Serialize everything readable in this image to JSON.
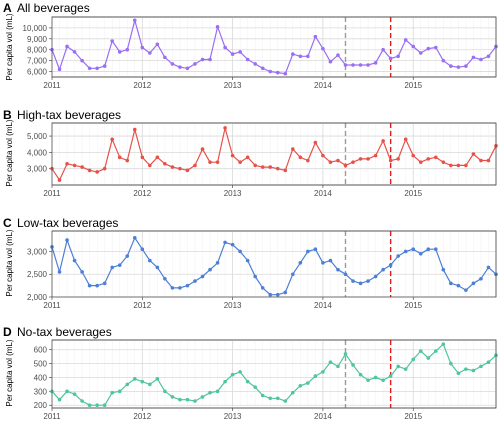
{
  "x_axis": {
    "tick_years": [
      2011,
      2012,
      2013,
      2014,
      2015
    ],
    "tick_labels": [
      "2011",
      "2012",
      "2013",
      "2014",
      "2015"
    ],
    "start": "2011-01",
    "end": "2015-12"
  },
  "markers": [
    {
      "date": "2014-04",
      "color": "#999999",
      "style": "dashed"
    },
    {
      "date": "2014-10",
      "color": "#e41a1c",
      "style": "dashed"
    }
  ],
  "chart_data": [
    {
      "type": "line",
      "letter": "A",
      "title": "All beverages",
      "ylabel": "Per capita vol (mL)",
      "color": "#9b6ef3",
      "ylim": [
        5500,
        11000
      ],
      "yticks": [
        6000,
        7000,
        8000,
        9000,
        10000
      ],
      "ytick_labels": [
        "6,000",
        "7,000",
        "8,000",
        "9,000",
        "10,000"
      ],
      "x": [
        "2011-01",
        "2011-02",
        "2011-03",
        "2011-04",
        "2011-05",
        "2011-06",
        "2011-07",
        "2011-08",
        "2011-09",
        "2011-10",
        "2011-11",
        "2011-12",
        "2012-01",
        "2012-02",
        "2012-03",
        "2012-04",
        "2012-05",
        "2012-06",
        "2012-07",
        "2012-08",
        "2012-09",
        "2012-10",
        "2012-11",
        "2012-12",
        "2013-01",
        "2013-02",
        "2013-03",
        "2013-04",
        "2013-05",
        "2013-06",
        "2013-07",
        "2013-08",
        "2013-09",
        "2013-10",
        "2013-11",
        "2013-12",
        "2014-01",
        "2014-02",
        "2014-03",
        "2014-04",
        "2014-05",
        "2014-06",
        "2014-07",
        "2014-08",
        "2014-09",
        "2014-10",
        "2014-11",
        "2014-12",
        "2015-01",
        "2015-02",
        "2015-03",
        "2015-04",
        "2015-05",
        "2015-06",
        "2015-07",
        "2015-08",
        "2015-09",
        "2015-10",
        "2015-11",
        "2015-12"
      ],
      "values": [
        8000,
        6200,
        8300,
        7800,
        7000,
        6300,
        6300,
        6500,
        8800,
        7800,
        8000,
        10700,
        8200,
        7700,
        8500,
        7300,
        6700,
        6400,
        6300,
        6700,
        7100,
        7100,
        10100,
        8200,
        7600,
        7800,
        7100,
        6700,
        6300,
        6000,
        5900,
        5800,
        7600,
        7400,
        7400,
        9200,
        8100,
        6900,
        7500,
        6600,
        6600,
        6600,
        6600,
        6800,
        8000,
        7200,
        7400,
        8900,
        8300,
        7700,
        8100,
        8200,
        7000,
        6500,
        6400,
        6500,
        7300,
        7100,
        7400,
        8300
      ]
    },
    {
      "type": "line",
      "letter": "B",
      "title": "High-tax beverages",
      "ylabel": "Per capita vol (mL)",
      "color": "#e8514a",
      "ylim": [
        2000,
        5800
      ],
      "yticks": [
        3000,
        4000,
        5000
      ],
      "ytick_labels": [
        "3,000",
        "4,000",
        "5,000"
      ],
      "x": [
        "2011-01",
        "2011-02",
        "2011-03",
        "2011-04",
        "2011-05",
        "2011-06",
        "2011-07",
        "2011-08",
        "2011-09",
        "2011-10",
        "2011-11",
        "2011-12",
        "2012-01",
        "2012-02",
        "2012-03",
        "2012-04",
        "2012-05",
        "2012-06",
        "2012-07",
        "2012-08",
        "2012-09",
        "2012-10",
        "2012-11",
        "2012-12",
        "2013-01",
        "2013-02",
        "2013-03",
        "2013-04",
        "2013-05",
        "2013-06",
        "2013-07",
        "2013-08",
        "2013-09",
        "2013-10",
        "2013-11",
        "2013-12",
        "2014-01",
        "2014-02",
        "2014-03",
        "2014-04",
        "2014-05",
        "2014-06",
        "2014-07",
        "2014-08",
        "2014-09",
        "2014-10",
        "2014-11",
        "2014-12",
        "2015-01",
        "2015-02",
        "2015-03",
        "2015-04",
        "2015-05",
        "2015-06",
        "2015-07",
        "2015-08",
        "2015-09",
        "2015-10",
        "2015-11",
        "2015-12"
      ],
      "values": [
        3000,
        2300,
        3300,
        3200,
        3100,
        2900,
        2800,
        3000,
        4800,
        3700,
        3500,
        5400,
        3700,
        3200,
        3700,
        3300,
        3100,
        3000,
        2900,
        3200,
        4200,
        3400,
        3400,
        5500,
        3800,
        3400,
        3700,
        3200,
        3100,
        3100,
        3000,
        2900,
        4200,
        3700,
        3500,
        4600,
        3800,
        3400,
        3500,
        3200,
        3400,
        3600,
        3600,
        3800,
        4700,
        3500,
        3600,
        4800,
        3800,
        3400,
        3600,
        3700,
        3400,
        3200,
        3200,
        3200,
        3900,
        3500,
        3500,
        4400
      ]
    },
    {
      "type": "line",
      "letter": "C",
      "title": "Low-tax beverages",
      "ylabel": "Per capita vol (mL)",
      "color": "#4c7fd6",
      "ylim": [
        2000,
        3450
      ],
      "yticks": [
        2000,
        2500,
        3000
      ],
      "ytick_labels": [
        "2,000",
        "2,500",
        "3,000"
      ],
      "x": [
        "2011-01",
        "2011-02",
        "2011-03",
        "2011-04",
        "2011-05",
        "2011-06",
        "2011-07",
        "2011-08",
        "2011-09",
        "2011-10",
        "2011-11",
        "2011-12",
        "2012-01",
        "2012-02",
        "2012-03",
        "2012-04",
        "2012-05",
        "2012-06",
        "2012-07",
        "2012-08",
        "2012-09",
        "2012-10",
        "2012-11",
        "2012-12",
        "2013-01",
        "2013-02",
        "2013-03",
        "2013-04",
        "2013-05",
        "2013-06",
        "2013-07",
        "2013-08",
        "2013-09",
        "2013-10",
        "2013-11",
        "2013-12",
        "2014-01",
        "2014-02",
        "2014-03",
        "2014-04",
        "2014-05",
        "2014-06",
        "2014-07",
        "2014-08",
        "2014-09",
        "2014-10",
        "2014-11",
        "2014-12",
        "2015-01",
        "2015-02",
        "2015-03",
        "2015-04",
        "2015-05",
        "2015-06",
        "2015-07",
        "2015-08",
        "2015-09",
        "2015-10",
        "2015-11",
        "2015-12"
      ],
      "values": [
        3100,
        2550,
        3250,
        2800,
        2550,
        2250,
        2250,
        2300,
        2650,
        2700,
        2900,
        3300,
        3050,
        2800,
        2650,
        2400,
        2200,
        2200,
        2250,
        2350,
        2450,
        2600,
        2750,
        3200,
        3150,
        3000,
        2800,
        2450,
        2200,
        2050,
        2050,
        2100,
        2500,
        2750,
        3000,
        3050,
        2750,
        2800,
        2600,
        2500,
        2350,
        2300,
        2350,
        2450,
        2600,
        2700,
        2900,
        3000,
        3050,
        2950,
        3050,
        3050,
        2600,
        2300,
        2250,
        2150,
        2300,
        2400,
        2650,
        2500
      ]
    },
    {
      "type": "line",
      "letter": "D",
      "title": "No-tax beverages",
      "ylabel": "Per capita vol (mL)",
      "color": "#4fc59f",
      "ylim": [
        180,
        670
      ],
      "yticks": [
        200,
        300,
        400,
        500,
        600
      ],
      "ytick_labels": [
        "200",
        "300",
        "400",
        "500",
        "600"
      ],
      "x": [
        "2011-01",
        "2011-02",
        "2011-03",
        "2011-04",
        "2011-05",
        "2011-06",
        "2011-07",
        "2011-08",
        "2011-09",
        "2011-10",
        "2011-11",
        "2011-12",
        "2012-01",
        "2012-02",
        "2012-03",
        "2012-04",
        "2012-05",
        "2012-06",
        "2012-07",
        "2012-08",
        "2012-09",
        "2012-10",
        "2012-11",
        "2012-12",
        "2013-01",
        "2013-02",
        "2013-03",
        "2013-04",
        "2013-05",
        "2013-06",
        "2013-07",
        "2013-08",
        "2013-09",
        "2013-10",
        "2013-11",
        "2013-12",
        "2014-01",
        "2014-02",
        "2014-03",
        "2014-04",
        "2014-05",
        "2014-06",
        "2014-07",
        "2014-08",
        "2014-09",
        "2014-10",
        "2014-11",
        "2014-12",
        "2015-01",
        "2015-02",
        "2015-03",
        "2015-04",
        "2015-05",
        "2015-06",
        "2015-07",
        "2015-08",
        "2015-09",
        "2015-10",
        "2015-11",
        "2015-12"
      ],
      "values": [
        300,
        240,
        300,
        280,
        230,
        200,
        200,
        200,
        290,
        300,
        350,
        390,
        370,
        350,
        390,
        300,
        260,
        240,
        240,
        230,
        260,
        290,
        300,
        370,
        420,
        440,
        370,
        330,
        270,
        250,
        250,
        230,
        290,
        340,
        360,
        410,
        440,
        510,
        480,
        570,
        490,
        420,
        380,
        400,
        380,
        410,
        480,
        460,
        530,
        590,
        540,
        590,
        640,
        500,
        430,
        460,
        450,
        480,
        510,
        560
      ]
    }
  ]
}
